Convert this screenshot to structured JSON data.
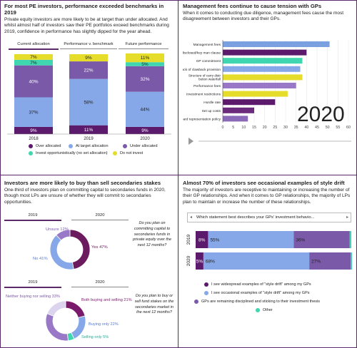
{
  "colors": {
    "purple_dark": "#5b1a6b",
    "purple_mid": "#7a5aa8",
    "blue": "#86a8e8",
    "teal": "#40d6b0",
    "yellow": "#e6dc2a",
    "border": "#5b2a6b"
  },
  "panel1": {
    "title": "For most PE investors, performance exceeded benchmarks in 2019",
    "subtitle": "Private equity investors are more likely to be at target than under allocated. And whilst almost half of investors saw their PE portfolios exceed benchmarks during 2019, confidence in performance has slightly dipped for the year ahead.",
    "tabs": [
      "Current allocation",
      "Performance v. benchmark",
      "Future performance"
    ],
    "legend": [
      "Over allocated",
      "At target allocation",
      "Under allocated",
      "Invest opportunistically (no set allocation)",
      "Do not invest"
    ]
  },
  "panel2": {
    "title": "Management fees continue to cause tension with GPs",
    "subtitle": "When it comes to conducting due diligence, management fees cause the most disagreement between investors and their GPs.",
    "year": "2020"
  },
  "panel3": {
    "title": "Investors are more likely to buy than sell secondaries stakes",
    "subtitle": "One-third of investors plan on committing capital to secondaries funds in 2020, though most LPs are unsure of whether they will commit to secondaries opportunities.",
    "tabs1": [
      "2019",
      "2020"
    ],
    "tabs2": [
      "2019",
      "2020"
    ],
    "q1": "Do you plan on committing capital to secondaries funds in private equity over the next 12 months?",
    "q2": "Do you plan to buy or sell fund stakes on the secondaries market in the next 12 months?"
  },
  "panel4": {
    "title": "Almost 70% of investors see occasional examples of style drift",
    "subtitle": "The majority of investors are receptive to maintaining or increasing the number of their GP relationships. And when it comes to GP relationships, the majority of LPs plan to maintain or increase the number of these relationships.",
    "dropdown": "Which statement best describes your GPs' investment behavio...",
    "legend": [
      "I see widespread examples of \"style drift\" among my GPs",
      "I see occasional examples of \"style drift\" among my GPs",
      "GPs are remaining disciplined and sticking to their investment thesis",
      "Other"
    ]
  },
  "chart_data": [
    {
      "type": "bar",
      "stacked": true,
      "categories": [
        "2018",
        "2019",
        "2020"
      ],
      "series": [
        {
          "name": "Over allocated",
          "values": [
            9,
            11,
            9
          ]
        },
        {
          "name": "At target allocation",
          "values": [
            37,
            58,
            44
          ]
        },
        {
          "name": "Under allocated",
          "values": [
            40,
            22,
            32
          ]
        },
        {
          "name": "Invest opportunistically (no set allocation)",
          "values": [
            7,
            0,
            5
          ]
        },
        {
          "name": "Do not invest",
          "values": [
            7,
            9,
            11
          ]
        }
      ],
      "labels": {
        "2018": [
          "9%",
          "37%",
          "40%",
          "7%",
          "7%"
        ],
        "2019": [
          "11%",
          "58%",
          "22%",
          "",
          "9%"
        ],
        "2020": [
          "9%",
          "44%",
          "32%",
          "5%",
          "11%"
        ]
      }
    },
    {
      "type": "bar",
      "orientation": "horizontal",
      "categories": [
        "Management fees",
        "Undisclosed/key man clause",
        "GP commitment",
        "Lack of clawback provision",
        "Structure of carry distribution waterfall",
        "Performance fees",
        "Investment restrictions",
        "Hurdle rate",
        "Set up costs",
        "Board representation policy"
      ],
      "values": [
        51,
        40,
        38,
        37,
        38,
        35,
        31,
        25,
        15,
        12
      ],
      "xlim": [
        0,
        60
      ],
      "xticks": [
        "0",
        "5",
        "10",
        "15",
        "20",
        "25",
        "30",
        "35",
        "40",
        "45",
        "50",
        "55",
        "60"
      ]
    },
    {
      "type": "pie",
      "title": "2019",
      "values": [
        {
          "label": "Yes",
          "value": 47
        },
        {
          "label": "No",
          "value": 41
        },
        {
          "label": "Unsure",
          "value": 12
        }
      ],
      "labels": [
        "Yes 47%",
        "No 41%",
        "Unsure 12%"
      ]
    },
    {
      "type": "pie",
      "title": "2019",
      "values": [
        {
          "label": "Both buying and selling",
          "value": 21
        },
        {
          "label": "Buying only",
          "value": 22
        },
        {
          "label": "Selling only",
          "value": 5
        },
        {
          "label": "Neither buying nor selling",
          "value": 33
        },
        {
          "label": "Other",
          "value": 19
        }
      ],
      "labels": [
        "Both buying and selling 21%",
        "Buying only 22%",
        "Selling only 5%",
        "Neither buying nor selling 33%"
      ]
    },
    {
      "type": "bar",
      "orientation": "horizontal",
      "stacked": true,
      "categories": [
        "2019",
        "2020"
      ],
      "series": [
        {
          "name": "I see widespread examples of \"style drift\" among my GPs",
          "values": [
            8,
            5
          ]
        },
        {
          "name": "I see occasional examples of \"style drift\" among my GPs",
          "values": [
            55,
            68
          ]
        },
        {
          "name": "GPs are remaining disciplined and sticking to their investment thesis",
          "values": [
            36,
            27
          ]
        },
        {
          "name": "Other",
          "values": [
            1,
            0
          ]
        }
      ],
      "labels": {
        "2019": [
          "8%",
          "55%",
          "36%",
          ""
        ],
        "2020": [
          "5%",
          "68%",
          "27%",
          ""
        ]
      }
    }
  ]
}
